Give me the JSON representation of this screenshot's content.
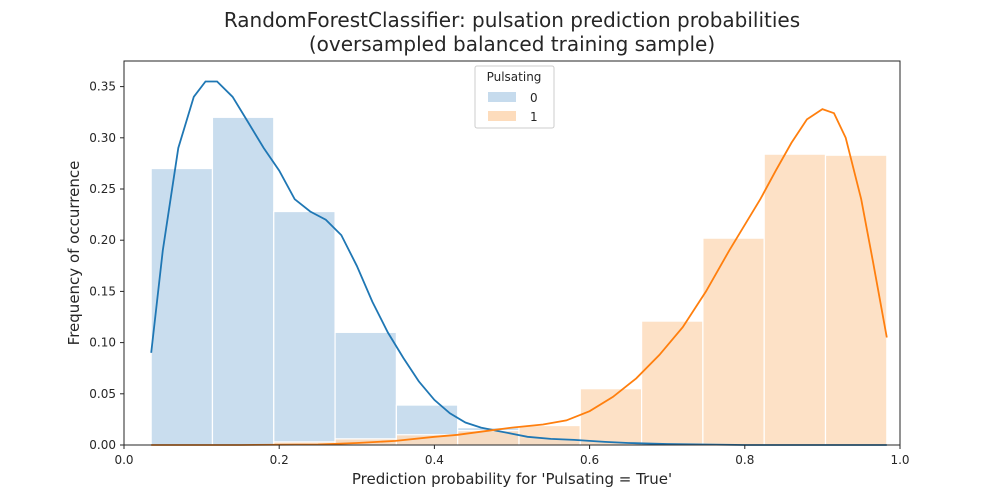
{
  "chart_data": {
    "type": "histogram",
    "title_line1": "RandomForestClassifier: pulsation prediction probabilities",
    "title_line2": "(oversampled balanced training sample)",
    "xlabel": "Prediction probability for 'Pulsating = True'",
    "ylabel": "Frequency of occurrence",
    "xlim": [
      0.0,
      1.0
    ],
    "ylim": [
      0.0,
      0.375
    ],
    "xticks": [
      0.0,
      0.2,
      0.4,
      0.6,
      0.8,
      1.0
    ],
    "xtick_labels": [
      "0.0",
      "0.2",
      "0.4",
      "0.6",
      "0.8",
      "1.0"
    ],
    "yticks": [
      0.0,
      0.05,
      0.1,
      0.15,
      0.2,
      0.25,
      0.3,
      0.35
    ],
    "ytick_labels": [
      "0.00",
      "0.05",
      "0.10",
      "0.15",
      "0.20",
      "0.25",
      "0.30",
      "0.35"
    ],
    "grid": false,
    "legend": {
      "title": "Pulsating",
      "placement": "upper-center",
      "entries": [
        "0",
        "1"
      ]
    },
    "bins": {
      "edges": [
        0.035,
        0.114,
        0.193,
        0.272,
        0.351,
        0.43,
        0.509,
        0.588,
        0.667,
        0.746,
        0.825,
        0.904,
        0.983
      ]
    },
    "series": [
      {
        "name": "0",
        "bar_color": "#c6dbed",
        "line_color": "#1f77b4",
        "values": [
          0.27,
          0.32,
          0.228,
          0.11,
          0.039,
          0.017,
          0.007,
          0.004,
          0.002,
          0.001,
          0.001,
          0.001
        ],
        "kde": [
          [
            0.035,
            0.09
          ],
          [
            0.05,
            0.19
          ],
          [
            0.07,
            0.29
          ],
          [
            0.09,
            0.34
          ],
          [
            0.105,
            0.355
          ],
          [
            0.12,
            0.355
          ],
          [
            0.14,
            0.34
          ],
          [
            0.16,
            0.315
          ],
          [
            0.18,
            0.29
          ],
          [
            0.2,
            0.268
          ],
          [
            0.22,
            0.24
          ],
          [
            0.24,
            0.228
          ],
          [
            0.26,
            0.22
          ],
          [
            0.28,
            0.205
          ],
          [
            0.3,
            0.175
          ],
          [
            0.32,
            0.14
          ],
          [
            0.34,
            0.11
          ],
          [
            0.36,
            0.085
          ],
          [
            0.38,
            0.062
          ],
          [
            0.4,
            0.044
          ],
          [
            0.42,
            0.031
          ],
          [
            0.44,
            0.022
          ],
          [
            0.46,
            0.017
          ],
          [
            0.48,
            0.014
          ],
          [
            0.5,
            0.011
          ],
          [
            0.52,
            0.008
          ],
          [
            0.55,
            0.006
          ],
          [
            0.58,
            0.005
          ],
          [
            0.6,
            0.004
          ],
          [
            0.62,
            0.003
          ],
          [
            0.65,
            0.002
          ],
          [
            0.7,
            0.001
          ],
          [
            0.75,
            0.0005
          ],
          [
            0.8,
            0.0
          ],
          [
            0.9,
            0.0
          ],
          [
            0.983,
            0.0
          ]
        ]
      },
      {
        "name": "1",
        "bar_color": "#fddcbc",
        "line_color": "#ff7f0e",
        "values": [
          0.0,
          0.0,
          0.003,
          0.006,
          0.01,
          0.014,
          0.019,
          0.055,
          0.121,
          0.202,
          0.284,
          0.283
        ],
        "kde": [
          [
            0.035,
            0.0
          ],
          [
            0.15,
            0.0
          ],
          [
            0.25,
            0.0005
          ],
          [
            0.3,
            0.002
          ],
          [
            0.35,
            0.004
          ],
          [
            0.4,
            0.008
          ],
          [
            0.43,
            0.01
          ],
          [
            0.46,
            0.013
          ],
          [
            0.5,
            0.017
          ],
          [
            0.54,
            0.02
          ],
          [
            0.57,
            0.024
          ],
          [
            0.6,
            0.033
          ],
          [
            0.63,
            0.047
          ],
          [
            0.66,
            0.065
          ],
          [
            0.69,
            0.088
          ],
          [
            0.72,
            0.115
          ],
          [
            0.75,
            0.15
          ],
          [
            0.78,
            0.19
          ],
          [
            0.8,
            0.215
          ],
          [
            0.82,
            0.24
          ],
          [
            0.84,
            0.268
          ],
          [
            0.86,
            0.295
          ],
          [
            0.88,
            0.318
          ],
          [
            0.9,
            0.328
          ],
          [
            0.915,
            0.324
          ],
          [
            0.93,
            0.3
          ],
          [
            0.95,
            0.24
          ],
          [
            0.965,
            0.18
          ],
          [
            0.983,
            0.105
          ]
        ]
      }
    ]
  }
}
